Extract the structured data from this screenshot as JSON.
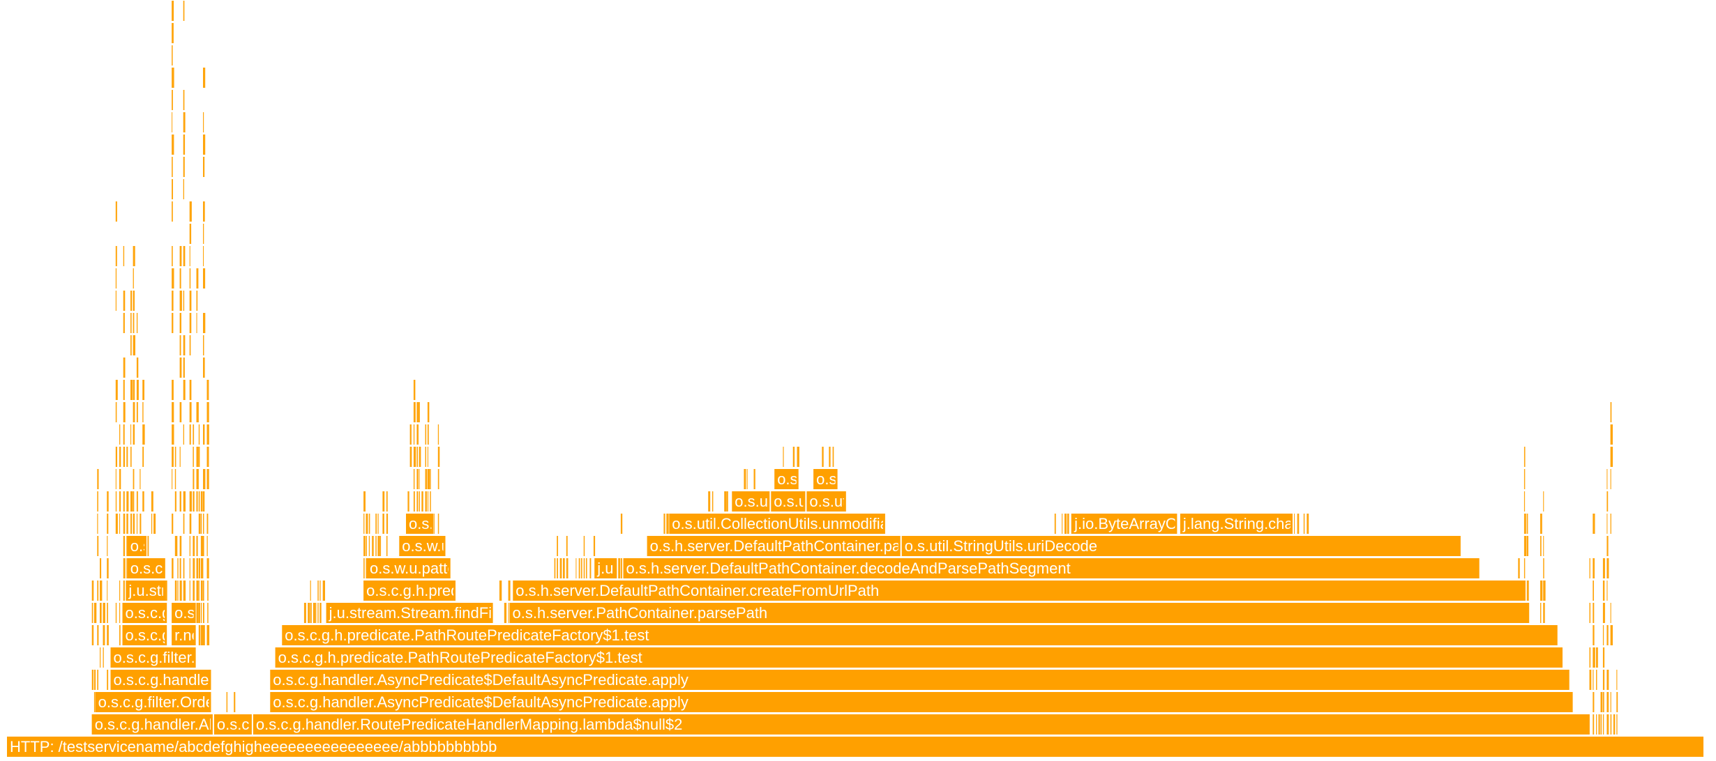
{
  "chart_data": {
    "type": "flamegraph",
    "unit": "fraction of total samples",
    "frames": [
      {
        "depth": 0,
        "start": 0.0,
        "end": 1.0,
        "name": "HTTP: /testservicename/abcdefghigheeeeeeeeeeeeeeee/abbbbbbbbbb"
      },
      {
        "depth": 1,
        "start": 0.05,
        "end": 0.122,
        "name": "o.s.c.g.handler.AbstractHandlerMapping"
      },
      {
        "depth": 1,
        "start": 0.122,
        "end": 0.145,
        "name": "o.s.c.g"
      },
      {
        "depth": 1,
        "start": 0.145,
        "end": 0.933,
        "name": "o.s.c.g.handler.RoutePredicateHandlerMapping.lambda$null$2"
      },
      {
        "depth": 2,
        "start": 0.052,
        "end": 0.121,
        "name": "o.s.c.g.filter.OrderedGatewayFilter"
      },
      {
        "depth": 2,
        "start": 0.155,
        "end": 0.923,
        "name": "o.s.c.g.handler.AsyncPredicate$DefaultAsyncPredicate.apply"
      },
      {
        "depth": 3,
        "start": 0.061,
        "end": 0.121,
        "name": "o.s.c.g.handler.FilteringWebHandler"
      },
      {
        "depth": 3,
        "start": 0.155,
        "end": 0.921,
        "name": "o.s.c.g.handler.AsyncPredicate$DefaultAsyncPredicate.apply"
      },
      {
        "depth": 4,
        "start": 0.061,
        "end": 0.112,
        "name": "o.s.c.g.filter.GatewayMetricsFilter"
      },
      {
        "depth": 4,
        "start": 0.158,
        "end": 0.917,
        "name": "o.s.c.g.h.predicate.PathRoutePredicateFactory$1.test"
      },
      {
        "depth": 5,
        "start": 0.068,
        "end": 0.095,
        "name": "o.s.c.g.filter"
      },
      {
        "depth": 5,
        "start": 0.097,
        "end": 0.112,
        "name": "r.netty"
      },
      {
        "depth": 5,
        "start": 0.162,
        "end": 0.914,
        "name": "o.s.c.g.h.predicate.PathRoutePredicateFactory$1.test"
      },
      {
        "depth": 6,
        "start": 0.068,
        "end": 0.095,
        "name": "o.s.c.g.filter.NettyRoutingFilter"
      },
      {
        "depth": 6,
        "start": 0.097,
        "end": 0.112,
        "name": "o.s.c.g.filter"
      },
      {
        "depth": 6,
        "start": 0.188,
        "end": 0.287,
        "name": "j.u.stream.Stream.findFirst"
      },
      {
        "depth": 6,
        "start": 0.296,
        "end": 0.897,
        "name": "o.s.h.server.PathContainer.parsePath"
      },
      {
        "depth": 7,
        "start": 0.07,
        "end": 0.094,
        "name": "j.u.stream.ReferencePipeline"
      },
      {
        "depth": 7,
        "start": 0.21,
        "end": 0.265,
        "name": "o.s.c.g.h.predicate.PathRoutePredicateFactory"
      },
      {
        "depth": 7,
        "start": 0.298,
        "end": 0.895,
        "name": "o.s.h.server.DefaultPathContainer.createFromUrlPath"
      },
      {
        "depth": 8,
        "start": 0.071,
        "end": 0.094,
        "name": "o.s.c.g.filter.RouteToRequestUrlFilter"
      },
      {
        "depth": 8,
        "start": 0.212,
        "end": 0.262,
        "name": "o.s.w.u.pattern.PathPattern.matches"
      },
      {
        "depth": 8,
        "start": 0.346,
        "end": 0.36,
        "name": "j.u.stream"
      },
      {
        "depth": 8,
        "start": 0.363,
        "end": 0.868,
        "name": "o.s.h.server.DefaultPathContainer.decodeAndParsePathSegment"
      },
      {
        "depth": 9,
        "start": 0.071,
        "end": 0.083,
        "name": "o.s.c.g"
      },
      {
        "depth": 9,
        "start": 0.231,
        "end": 0.259,
        "name": "o.s.w.u.pattern"
      },
      {
        "depth": 9,
        "start": 0.377,
        "end": 0.527,
        "name": "o.s.h.server.DefaultPathContainer.parsePathParams"
      },
      {
        "depth": 9,
        "start": 0.527,
        "end": 0.857,
        "name": "o.s.util.StringUtils.uriDecode"
      },
      {
        "depth": 10,
        "start": 0.235,
        "end": 0.252,
        "name": "o.s.w.u.p"
      },
      {
        "depth": 10,
        "start": 0.39,
        "end": 0.518,
        "name": "o.s.util.CollectionUtils.unmodifiableMultiValueMap"
      },
      {
        "depth": 10,
        "start": 0.627,
        "end": 0.69,
        "name": "j.io.ByteArrayOutputStream"
      },
      {
        "depth": 10,
        "start": 0.691,
        "end": 0.758,
        "name": "j.lang.String.charAt"
      },
      {
        "depth": 11,
        "start": 0.427,
        "end": 0.45,
        "name": "o.s.u"
      },
      {
        "depth": 11,
        "start": 0.45,
        "end": 0.471,
        "name": "o.s.util"
      },
      {
        "depth": 11,
        "start": 0.471,
        "end": 0.495,
        "name": "o.s.util.LinkedMultiValueMap"
      },
      {
        "depth": 12,
        "start": 0.452,
        "end": 0.467,
        "name": "o.s.util"
      },
      {
        "depth": 12,
        "start": 0.475,
        "end": 0.49,
        "name": "o.s.util"
      }
    ],
    "noise": [
      {
        "start": 0.05,
        "end": 0.062,
        "min": 2,
        "max": 12
      },
      {
        "start": 0.064,
        "end": 0.084,
        "min": 5,
        "max": 32
      },
      {
        "start": 0.085,
        "end": 0.096,
        "min": 3,
        "max": 20
      },
      {
        "start": 0.097,
        "end": 0.118,
        "min": 6,
        "max": 33
      },
      {
        "start": 0.118,
        "end": 0.122,
        "min": 2,
        "max": 12
      },
      {
        "start": 0.128,
        "end": 0.14,
        "min": 1,
        "max": 2
      },
      {
        "start": 0.175,
        "end": 0.19,
        "min": 6,
        "max": 7
      },
      {
        "start": 0.21,
        "end": 0.225,
        "min": 9,
        "max": 11
      },
      {
        "start": 0.236,
        "end": 0.254,
        "min": 11,
        "max": 16
      },
      {
        "start": 0.29,
        "end": 0.3,
        "min": 6,
        "max": 7
      },
      {
        "start": 0.32,
        "end": 0.35,
        "min": 8,
        "max": 9
      },
      {
        "start": 0.36,
        "end": 0.366,
        "min": 8,
        "max": 10
      },
      {
        "start": 0.385,
        "end": 0.39,
        "min": 10,
        "max": 10
      },
      {
        "start": 0.413,
        "end": 0.427,
        "min": 11,
        "max": 11
      },
      {
        "start": 0.434,
        "end": 0.44,
        "min": 12,
        "max": 12
      },
      {
        "start": 0.455,
        "end": 0.466,
        "min": 13,
        "max": 13
      },
      {
        "start": 0.48,
        "end": 0.487,
        "min": 13,
        "max": 13
      },
      {
        "start": 0.617,
        "end": 0.627,
        "min": 10,
        "max": 10
      },
      {
        "start": 0.758,
        "end": 0.767,
        "min": 10,
        "max": 10
      },
      {
        "start": 0.89,
        "end": 0.905,
        "min": 1,
        "max": 15
      },
      {
        "start": 0.932,
        "end": 0.95,
        "min": 1,
        "max": 15
      }
    ]
  }
}
